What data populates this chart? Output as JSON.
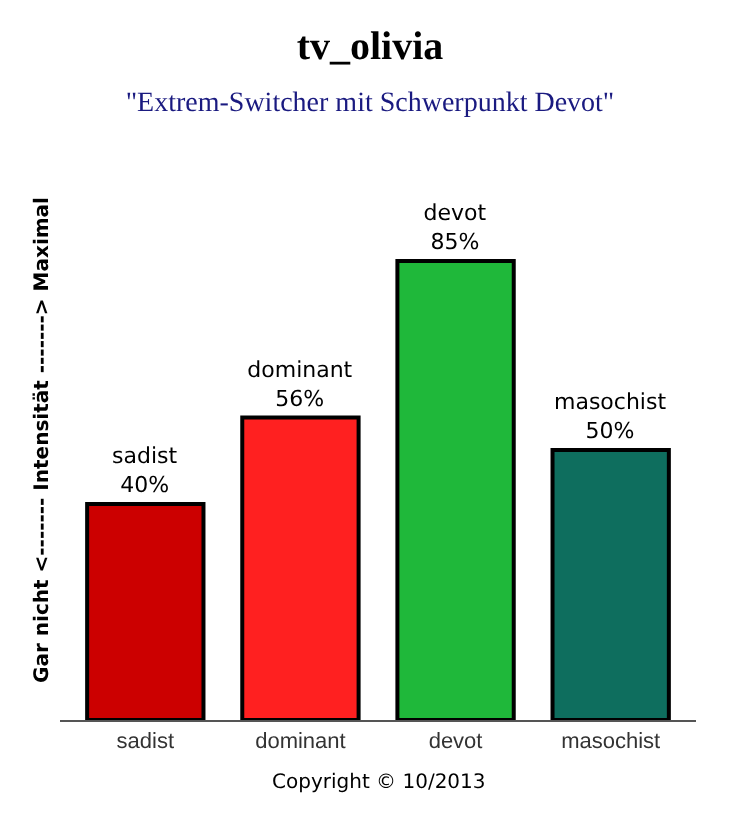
{
  "chart_data": {
    "type": "bar",
    "title": "tv_olivia",
    "subtitle": "\"Extrem-Switcher mit Schwerpunkt Devot\"",
    "ylabel": "Gar nicht <------- Intensität -------> Maximal",
    "categories": [
      "sadist",
      "dominant",
      "devot",
      "masochist"
    ],
    "values": [
      40,
      56,
      85,
      50
    ],
    "colors": [
      "#cc0000",
      "#ff2020",
      "#1fb83a",
      "#0e6e5e"
    ],
    "value_labels": [
      "sadist\n40%",
      "dominant\n56%",
      "devot\n85%",
      "masochist\n50%"
    ],
    "annotations": [
      "Copyright © 10/2013"
    ],
    "legend": false
  }
}
